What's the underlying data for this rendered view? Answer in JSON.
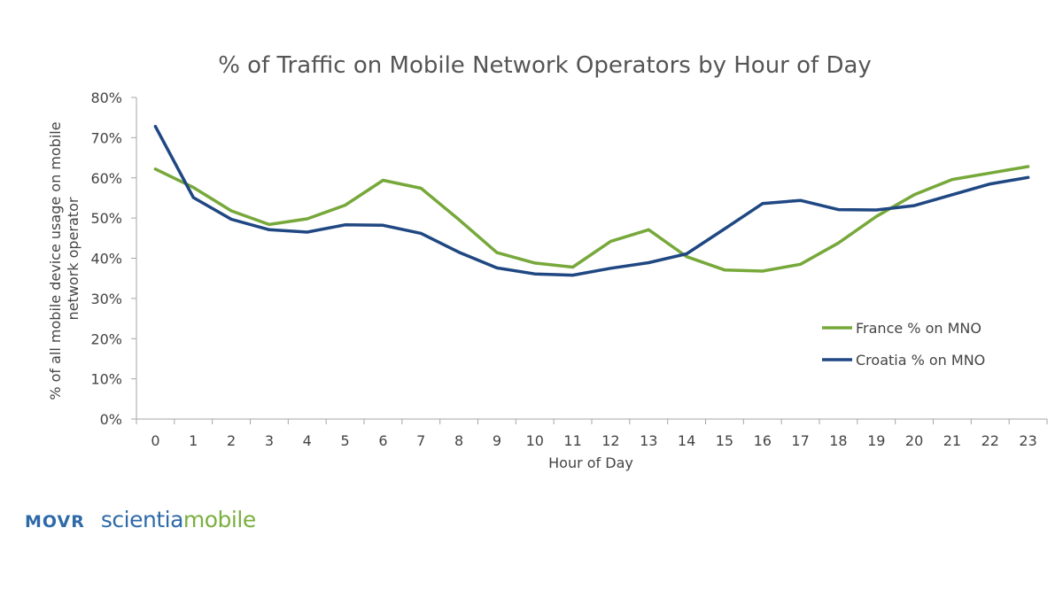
{
  "chart_data": {
    "type": "line",
    "title": "% of Traffic on Mobile Network Operators by Hour of Day",
    "xlabel": "Hour of Day",
    "ylabel_lines": [
      "% of all mobile device usage on mobile",
      "network operator"
    ],
    "categories": [
      "0",
      "1",
      "2",
      "3",
      "4",
      "5",
      "6",
      "7",
      "8",
      "9",
      "10",
      "11",
      "12",
      "13",
      "14",
      "15",
      "16",
      "17",
      "18",
      "19",
      "20",
      "21",
      "22",
      "23"
    ],
    "yticks": [
      "0%",
      "10%",
      "20%",
      "30%",
      "40%",
      "50%",
      "60%",
      "70%",
      "80%"
    ],
    "ylim": [
      0,
      80
    ],
    "grid": false,
    "legend_position": "right",
    "series": [
      {
        "name": "France % on MNO",
        "color": "#77a83a",
        "values": [
          62.2,
          57.6,
          51.8,
          48.4,
          49.8,
          53.2,
          59.4,
          57.4,
          49.6,
          41.4,
          38.8,
          37.8,
          44.2,
          47.1,
          40.4,
          37.1,
          36.8,
          38.5,
          43.8,
          50.4,
          55.8,
          59.6,
          61.2,
          62.8
        ]
      },
      {
        "name": "Croatia % on MNO",
        "color": "#1f4782",
        "values": [
          72.8,
          55.1,
          49.7,
          47.1,
          46.5,
          48.3,
          48.2,
          46.2,
          41.5,
          37.6,
          36.1,
          35.8,
          37.5,
          38.9,
          41.1,
          47.3,
          53.6,
          54.4,
          52.1,
          52.0,
          53.1,
          55.8,
          58.5,
          60.1
        ]
      }
    ]
  },
  "brand": {
    "movr": "MOVR",
    "scientia": "scientia",
    "mobile": "mobile"
  }
}
